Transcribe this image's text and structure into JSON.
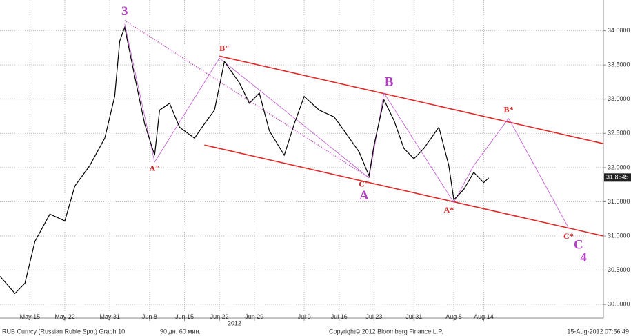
{
  "chart_data": {
    "type": "line",
    "series": [
      {
        "name": "RUB Curncy",
        "color": "#000000",
        "x": [
          "2012-05-09",
          "2012-05-12",
          "2012-05-14",
          "2012-05-16",
          "2012-05-19",
          "2012-05-22",
          "2012-05-24",
          "2012-05-27",
          "2012-05-30",
          "2012-06-01",
          "2012-06-02",
          "2012-06-03",
          "2012-06-05",
          "2012-06-07",
          "2012-06-09",
          "2012-06-10",
          "2012-06-12",
          "2012-06-14",
          "2012-06-17",
          "2012-06-19",
          "2012-06-21",
          "2012-06-23",
          "2012-06-26",
          "2012-06-28",
          "2012-06-30",
          "2012-07-02",
          "2012-07-05",
          "2012-07-07",
          "2012-07-09",
          "2012-07-12",
          "2012-07-15",
          "2012-07-17",
          "2012-07-20",
          "2012-07-22",
          "2012-07-23",
          "2012-07-25",
          "2012-07-27",
          "2012-07-29",
          "2012-07-31",
          "2012-08-02",
          "2012-08-05",
          "2012-08-07",
          "2012-08-08",
          "2012-08-10",
          "2012-08-12",
          "2012-08-14",
          "2012-08-15"
        ],
        "values": [
          30.41,
          30.16,
          30.31,
          30.92,
          31.32,
          31.22,
          31.73,
          32.03,
          32.43,
          33.04,
          33.85,
          34.05,
          33.34,
          32.64,
          32.18,
          32.84,
          32.94,
          32.59,
          32.43,
          32.64,
          32.84,
          33.55,
          33.24,
          32.94,
          33.09,
          32.54,
          32.18,
          32.64,
          33.04,
          32.84,
          32.74,
          32.54,
          32.23,
          31.88,
          32.33,
          32.99,
          32.69,
          32.28,
          32.13,
          32.28,
          32.59,
          32.03,
          31.53,
          31.68,
          31.93,
          31.78,
          31.85
        ]
      }
    ],
    "last_value": 31.8545,
    "xlim": [
      "2012-05-09",
      "2012-09-07"
    ],
    "ylim": [
      29.8,
      34.45
    ],
    "xticks": [
      {
        "value": "2012-05-15",
        "label": "May 15"
      },
      {
        "value": "2012-05-22",
        "label": "May 22"
      },
      {
        "value": "2012-05-31",
        "label": "May 31"
      },
      {
        "value": "2012-06-08",
        "label": "Jun 8"
      },
      {
        "value": "2012-06-15",
        "label": "Jun 15"
      },
      {
        "value": "2012-06-22",
        "label": "Jun 22"
      },
      {
        "value": "2012-06-29",
        "label": "Jun 29"
      },
      {
        "value": "2012-07-09",
        "label": "Jul 9"
      },
      {
        "value": "2012-07-16",
        "label": "Jul 16"
      },
      {
        "value": "2012-07-23",
        "label": "Jul 23"
      },
      {
        "value": "2012-07-31",
        "label": "Jul 31"
      },
      {
        "value": "2012-08-08",
        "label": "Aug 8"
      },
      {
        "value": "2012-08-14",
        "label": "Aug 14"
      }
    ],
    "xticks_secondary": [
      {
        "value": "2012-06-25",
        "label": "2012"
      }
    ],
    "yticks": [
      {
        "value": 30,
        "label": "30.0000"
      },
      {
        "value": 30.5,
        "label": "30.5000"
      },
      {
        "value": 31,
        "label": "31.0000"
      },
      {
        "value": 31.5,
        "label": "31.5000"
      },
      {
        "value": 32,
        "label": "32.0000"
      },
      {
        "value": 32.5,
        "label": "32.5000"
      },
      {
        "value": 33,
        "label": "33.0000"
      },
      {
        "value": 33.5,
        "label": "33.5000"
      },
      {
        "value": 34,
        "label": "34.0000"
      }
    ],
    "grid": true,
    "trendlines": [
      {
        "x": [
          "2012-06-22",
          "2012-09-07"
        ],
        "y": [
          33.63,
          32.35
        ],
        "color": "#e02828",
        "style": "solid-thick"
      },
      {
        "x": [
          "2012-06-19",
          "2012-09-07"
        ],
        "y": [
          32.33,
          31.0
        ],
        "color": "#e02828",
        "style": "solid-thick"
      },
      {
        "x": [
          "2012-06-03",
          "2012-07-22"
        ],
        "y": [
          34.15,
          31.85
        ],
        "color": "#c83cc8",
        "style": "dotted"
      },
      {
        "x": [
          "2012-06-22",
          "2012-07-22"
        ],
        "y": [
          33.6,
          31.85
        ],
        "color": "#c050d0",
        "style": "thin"
      },
      {
        "x": [
          "2012-06-03",
          "2012-06-09"
        ],
        "y": [
          34.1,
          32.08
        ],
        "color": "#c050d0",
        "style": "thin"
      },
      {
        "x": [
          "2012-06-09",
          "2012-06-22"
        ],
        "y": [
          32.08,
          33.6
        ],
        "color": "#c050d0",
        "style": "thin"
      },
      {
        "x": [
          "2012-07-22",
          "2012-07-25"
        ],
        "y": [
          31.85,
          33.09
        ],
        "color": "#c050d0",
        "style": "thin"
      },
      {
        "x": [
          "2012-07-25",
          "2012-08-08"
        ],
        "y": [
          33.09,
          31.49
        ],
        "color": "#c050d0",
        "style": "thin"
      },
      {
        "x": [
          "2012-08-08",
          "2012-08-12"
        ],
        "y": [
          31.49,
          32.03
        ],
        "color": "#c050d0",
        "style": "thin"
      },
      {
        "x": [
          "2012-08-12",
          "2012-08-19"
        ],
        "y": [
          32.03,
          32.72
        ],
        "color": "#c050d0",
        "style": "thin"
      },
      {
        "x": [
          "2012-08-19",
          "2012-08-31"
        ],
        "y": [
          32.72,
          31.12
        ],
        "color": "#c050d0",
        "style": "thin"
      }
    ],
    "annotations": [
      {
        "text": "3",
        "x": "2012-06-03",
        "y": 34.27,
        "color": "#b040c0",
        "style": "major"
      },
      {
        "text": "A\"",
        "x": "2012-06-09",
        "y": 31.98,
        "color": "#d02020",
        "style": "minor"
      },
      {
        "text": "B\"",
        "x": "2012-06-23",
        "y": 33.73,
        "color": "#d02020",
        "style": "minor"
      },
      {
        "text": "C\"",
        "x": "2012-07-21",
        "y": 31.75,
        "color": "#d02020",
        "style": "minor"
      },
      {
        "text": "A",
        "x": "2012-07-21",
        "y": 31.58,
        "color": "#b040c0",
        "style": "major"
      },
      {
        "text": "B",
        "x": "2012-07-26",
        "y": 33.24,
        "color": "#b040c0",
        "style": "major"
      },
      {
        "text": "A*",
        "x": "2012-08-07",
        "y": 31.37,
        "color": "#d02020",
        "style": "minor"
      },
      {
        "text": "B*",
        "x": "2012-08-19",
        "y": 32.84,
        "color": "#d02020",
        "style": "minor"
      },
      {
        "text": "C*",
        "x": "2012-08-31",
        "y": 30.99,
        "color": "#d02020",
        "style": "minor"
      },
      {
        "text": "C",
        "x": "2012-09-02",
        "y": 30.86,
        "color": "#b040c0",
        "style": "major"
      },
      {
        "text": "4",
        "x": "2012-09-03",
        "y": 30.67,
        "color": "#b040c0",
        "style": "major"
      }
    ],
    "footer": {
      "left": "RUB Curncy (Russian Ruble Spot) Graph 10",
      "period": "90 дн. 60 мин.",
      "copyright": "Copyright© 2012 Bloomberg Finance L.P.",
      "timestamp": "15-Aug-2012 07:56:49"
    }
  }
}
